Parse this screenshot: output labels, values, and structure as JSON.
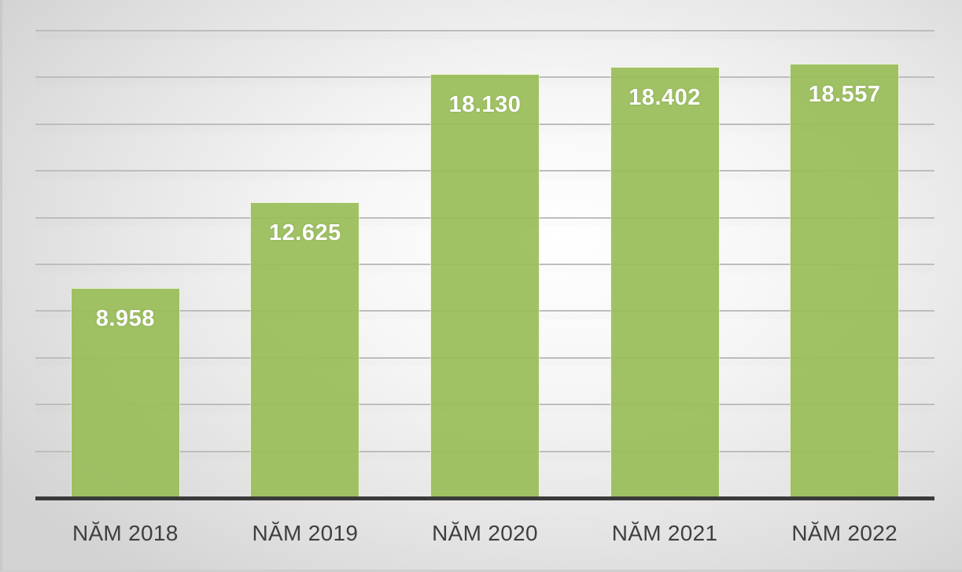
{
  "chart_data": {
    "type": "bar",
    "title": "",
    "xlabel": "",
    "ylabel": "",
    "categories": [
      "NĂM 2018",
      "NĂM 2019",
      "NĂM 2020",
      "NĂM 2021",
      "NĂM 2022"
    ],
    "values": [
      8958,
      12625,
      18130,
      18402,
      18557
    ],
    "value_labels": [
      "8.958",
      "12.625",
      "18.130",
      "18.402",
      "18.557"
    ],
    "ylim": [
      0,
      20000
    ],
    "y_gridline_step": 2000,
    "y_tick_labels_visible": false,
    "grid": true,
    "legend": null,
    "bar_color": "#9abe5a"
  },
  "colors": {
    "bar": "#9abe5a",
    "bar_label": "#ffffff",
    "category_label": "#3f3f3f",
    "gridline": "#bdbdbd",
    "axis": "#3a3a3a"
  }
}
